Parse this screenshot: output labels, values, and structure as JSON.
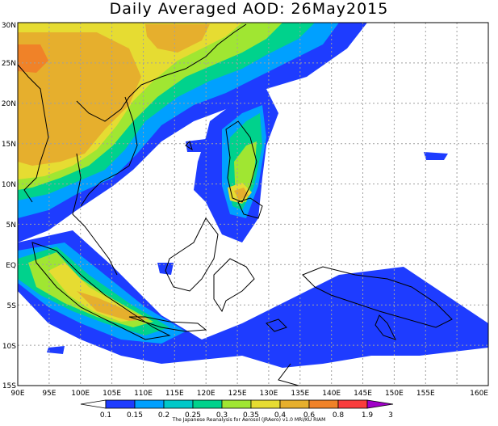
{
  "title": "Daily Averaged AOD: 26May2015",
  "credit": "The Japanese Reanalysis for Aerosol (JRAero) v1.0 MRI/KU RIAM",
  "map": {
    "lon_labels": [
      "90E",
      "95E",
      "100E",
      "105E",
      "110E",
      "115E",
      "120E",
      "125E",
      "130E",
      "135E",
      "140E",
      "145E",
      "150E",
      "155E",
      "160E"
    ],
    "lat_labels": [
      "30N",
      "25N",
      "20N",
      "15N",
      "10N",
      "5N",
      "EQ",
      "5S",
      "10S",
      "15S"
    ]
  },
  "legend": {
    "labels": [
      "0.1",
      "0.15",
      "0.2",
      "0.25",
      "0.3",
      "0.35",
      "0.4",
      "0.6",
      "0.8",
      "1.9",
      "3"
    ],
    "colors": [
      "#ffffff",
      "#1e3cff",
      "#00a0ff",
      "#00c8c8",
      "#00d28c",
      "#a0e632",
      "#e6dc32",
      "#e6af2d",
      "#f08228",
      "#fa3c3c",
      "#a000c8"
    ]
  }
}
